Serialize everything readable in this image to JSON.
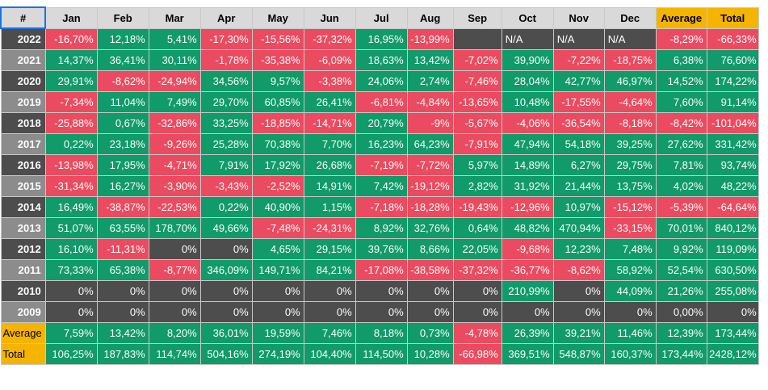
{
  "headers": [
    "#",
    "Jan",
    "Feb",
    "Mar",
    "Apr",
    "May",
    "Jun",
    "Jul",
    "Aug",
    "Sep",
    "Oct",
    "Nov",
    "Dec",
    "Average",
    "Total"
  ],
  "rows": [
    {
      "year": "2022",
      "cells": [
        "-16,70%",
        "12,18%",
        "5,41%",
        "-17,30%",
        "-15,56%",
        "-37,32%",
        "16,95%",
        "-13,99%",
        "",
        "N/A",
        "N/A",
        "N/A",
        "-8,29%",
        "-66,33%"
      ]
    },
    {
      "year": "2021",
      "cells": [
        "14,37%",
        "36,41%",
        "30,11%",
        "-1,78%",
        "-35,38%",
        "-6,09%",
        "18,63%",
        "13,42%",
        "-7,02%",
        "39,90%",
        "-7,22%",
        "-18,75%",
        "6,38%",
        "76,60%"
      ]
    },
    {
      "year": "2020",
      "cells": [
        "29,91%",
        "-8,62%",
        "-24,94%",
        "34,56%",
        "9,57%",
        "-3,38%",
        "24,06%",
        "2,74%",
        "-7,46%",
        "28,04%",
        "42,77%",
        "46,97%",
        "14,52%",
        "174,22%"
      ]
    },
    {
      "year": "2019",
      "cells": [
        "-7,34%",
        "11,04%",
        "7,49%",
        "29,70%",
        "60,85%",
        "26,41%",
        "-6,81%",
        "-4,84%",
        "-13,65%",
        "10,48%",
        "-17,55%",
        "-4,64%",
        "7,60%",
        "91,14%"
      ]
    },
    {
      "year": "2018",
      "cells": [
        "-25,88%",
        "0,67%",
        "-32,86%",
        "33,25%",
        "-18,85%",
        "-14,71%",
        "20,79%",
        "-9%",
        "-5,67%",
        "-4,06%",
        "-36,54%",
        "-8,18%",
        "-8,42%",
        "-101,04%"
      ]
    },
    {
      "year": "2017",
      "cells": [
        "0,22%",
        "23,18%",
        "-9,26%",
        "25,28%",
        "70,38%",
        "7,70%",
        "16,23%",
        "64,23%",
        "-7,91%",
        "47,94%",
        "54,18%",
        "39,25%",
        "27,62%",
        "331,42%"
      ]
    },
    {
      "year": "2016",
      "cells": [
        "-13,98%",
        "17,95%",
        "-4,71%",
        "7,91%",
        "17,92%",
        "26,68%",
        "-7,19%",
        "-7,72%",
        "5,97%",
        "14,89%",
        "6,27%",
        "29,75%",
        "7,81%",
        "93,74%"
      ]
    },
    {
      "year": "2015",
      "cells": [
        "-31,34%",
        "16,27%",
        "-3,90%",
        "-3,43%",
        "-2,52%",
        "14,91%",
        "7,42%",
        "-19,12%",
        "2,82%",
        "31,92%",
        "21,44%",
        "13,75%",
        "4,02%",
        "48,22%"
      ]
    },
    {
      "year": "2014",
      "cells": [
        "16,49%",
        "-38,87%",
        "-22,53%",
        "0,22%",
        "40,90%",
        "1,15%",
        "-7,18%",
        "-18,28%",
        "-19,43%",
        "-12,96%",
        "10,97%",
        "-15,12%",
        "-5,39%",
        "-64,64%"
      ]
    },
    {
      "year": "2013",
      "cells": [
        "51,07%",
        "63,55%",
        "178,70%",
        "49,66%",
        "-7,48%",
        "-24,31%",
        "8,92%",
        "32,76%",
        "0,64%",
        "48,82%",
        "470,94%",
        "-33,15%",
        "70,01%",
        "840,12%"
      ]
    },
    {
      "year": "2012",
      "cells": [
        "16,10%",
        "-11,31%",
        "0%",
        "0%",
        "4,65%",
        "29,15%",
        "39,76%",
        "8,66%",
        "22,05%",
        "-9,68%",
        "12,23%",
        "7,48%",
        "9,92%",
        "119,09%"
      ]
    },
    {
      "year": "2011",
      "cells": [
        "73,33%",
        "65,38%",
        "-8,77%",
        "346,09%",
        "149,71%",
        "84,21%",
        "-17,08%",
        "-38,58%",
        "-37,32%",
        "-36,77%",
        "-8,62%",
        "58,92%",
        "52,54%",
        "630,50%"
      ]
    },
    {
      "year": "2010",
      "cells": [
        "0%",
        "0%",
        "0%",
        "0%",
        "0%",
        "0%",
        "0%",
        "0%",
        "0%",
        "210,99%",
        "0%",
        "44,09%",
        "21,26%",
        "255,08%"
      ]
    },
    {
      "year": "2009",
      "cells": [
        "0%",
        "0%",
        "0%",
        "0%",
        "0%",
        "0%",
        "0%",
        "0%",
        "0%",
        "0%",
        "0%",
        "0%",
        "0,00%",
        "0%"
      ]
    }
  ],
  "footer": [
    {
      "label": "Average",
      "cells": [
        "7,59%",
        "13,42%",
        "8,20%",
        "36,01%",
        "19,59%",
        "7,46%",
        "8,18%",
        "0,73%",
        "-4,78%",
        "26,39%",
        "39,21%",
        "11,46%",
        "12,39%",
        "173,44%"
      ]
    },
    {
      "label": "Total",
      "cells": [
        "106,25%",
        "187,83%",
        "114,74%",
        "504,16%",
        "274,19%",
        "104,40%",
        "114,50%",
        "10,28%",
        "-66,98%",
        "369,51%",
        "548,87%",
        "160,37%",
        "173,44%",
        "2428,12%"
      ]
    }
  ],
  "colors": {
    "positive": "#119a6a",
    "negative": "#ea4b60",
    "neutral": "#4d4d4d",
    "highlight": "#f4b400",
    "header": "#d9d9d9"
  }
}
